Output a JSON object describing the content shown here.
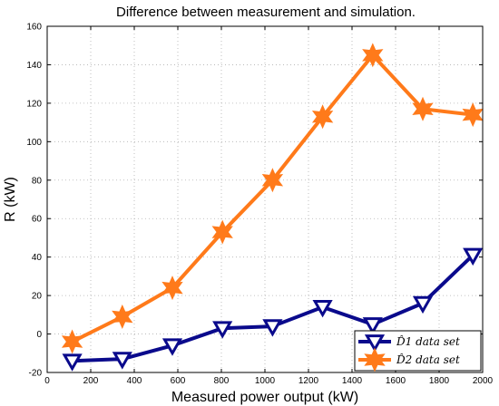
{
  "chart_data": {
    "type": "line",
    "title": "Difference between measurement and simulation.",
    "xlabel": "Measured power output (kW)",
    "ylabel": "R (kW)",
    "xlim": [
      0,
      2000
    ],
    "ylim": [
      -20,
      160
    ],
    "xticks": [
      0,
      200,
      400,
      600,
      800,
      1000,
      1200,
      1400,
      1600,
      1800,
      2000
    ],
    "yticks": [
      -20,
      0,
      20,
      40,
      60,
      80,
      100,
      120,
      140,
      160
    ],
    "grid": true,
    "legend_position": "bottom-right",
    "series": [
      {
        "name": "D̂1 data set",
        "color": "#0a0a8c",
        "marker": "triangle-down",
        "x": [
          115,
          345,
          575,
          805,
          1035,
          1265,
          1495,
          1725,
          1955
        ],
        "y": [
          -14,
          -13,
          -6,
          3,
          4,
          14,
          5,
          16,
          41
        ]
      },
      {
        "name": "D̂2 data set",
        "color": "#ff7a1a",
        "marker": "hexagram",
        "x": [
          115,
          345,
          575,
          805,
          1035,
          1265,
          1495,
          1725,
          1955
        ],
        "y": [
          -4,
          9,
          24,
          53,
          80,
          113,
          145,
          117,
          114
        ]
      }
    ]
  }
}
